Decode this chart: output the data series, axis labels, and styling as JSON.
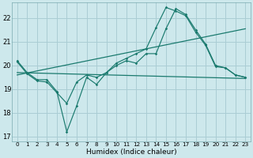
{
  "xlabel": "Humidex (Indice chaleur)",
  "bg_color": "#cde8ec",
  "grid_color": "#aacdd4",
  "line_color": "#1a7a6e",
  "xlim": [
    -0.5,
    23.5
  ],
  "ylim": [
    16.8,
    22.65
  ],
  "xticks": [
    0,
    1,
    2,
    3,
    4,
    5,
    6,
    7,
    8,
    9,
    10,
    11,
    12,
    13,
    14,
    15,
    16,
    17,
    18,
    19,
    20,
    21,
    22,
    23
  ],
  "yticks": [
    17,
    18,
    19,
    20,
    21,
    22
  ],
  "line_spiky_high": {
    "x": [
      0,
      1,
      2,
      3,
      4,
      5,
      6,
      7,
      8,
      9,
      10,
      11,
      12,
      13,
      14,
      15,
      16,
      17,
      18,
      19,
      20,
      21,
      22,
      23
    ],
    "y": [
      20.2,
      19.7,
      19.4,
      19.4,
      18.9,
      17.2,
      18.3,
      19.5,
      19.2,
      19.7,
      20.1,
      20.3,
      20.5,
      20.7,
      21.6,
      22.45,
      22.3,
      22.1,
      21.4,
      20.85,
      19.95,
      19.9,
      19.6,
      19.5
    ]
  },
  "line_spiky_low": {
    "x": [
      0,
      1,
      2,
      3,
      4,
      5,
      6,
      7,
      8,
      9,
      10,
      11,
      12,
      13,
      14,
      15,
      16,
      17,
      18,
      19,
      20,
      21,
      22,
      23
    ],
    "y": [
      20.15,
      19.65,
      19.35,
      19.3,
      18.85,
      18.4,
      19.3,
      19.6,
      19.5,
      19.7,
      20.0,
      20.2,
      20.1,
      20.5,
      20.5,
      21.55,
      22.4,
      22.15,
      21.5,
      20.9,
      20.0,
      19.9,
      19.6,
      19.5
    ]
  },
  "line_trend_high": {
    "x": [
      0,
      23
    ],
    "y": [
      19.6,
      21.55
    ]
  },
  "line_trend_low": {
    "x": [
      0,
      23
    ],
    "y": [
      19.7,
      19.45
    ]
  }
}
